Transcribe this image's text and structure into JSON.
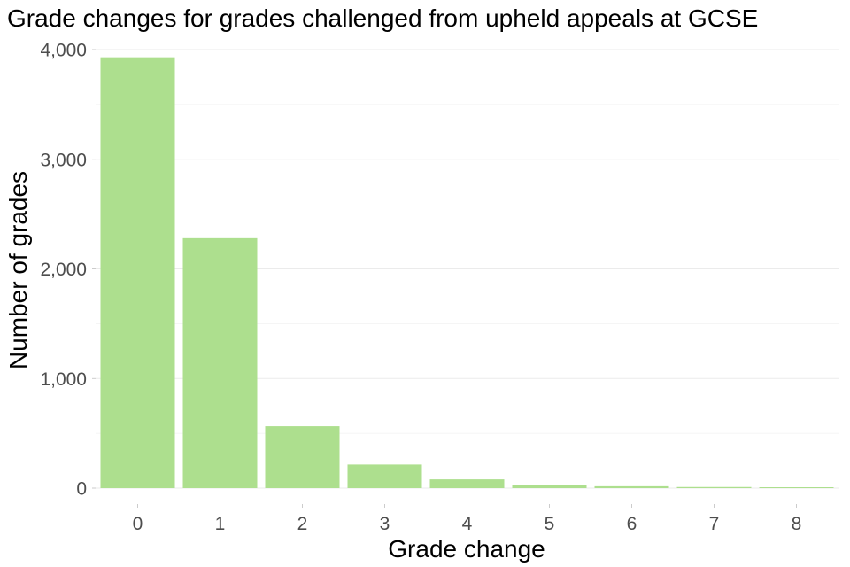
{
  "chart_data": {
    "type": "bar",
    "title": "Grade changes for grades challenged from upheld appeals at GCSE",
    "xlabel": "Grade change",
    "ylabel": "Number of grades",
    "categories": [
      "0",
      "1",
      "2",
      "3",
      "4",
      "5",
      "6",
      "7",
      "8"
    ],
    "values": [
      3930,
      2280,
      565,
      215,
      80,
      28,
      17,
      10,
      8
    ],
    "ylim": [
      0,
      4000
    ],
    "yticks": [
      0,
      1000,
      2000,
      3000,
      4000
    ],
    "ytick_labels": [
      "0",
      "1,000",
      "2,000",
      "3,000",
      "4,000"
    ],
    "grid": true,
    "legend": "none",
    "bar_color": "#addf8e"
  }
}
